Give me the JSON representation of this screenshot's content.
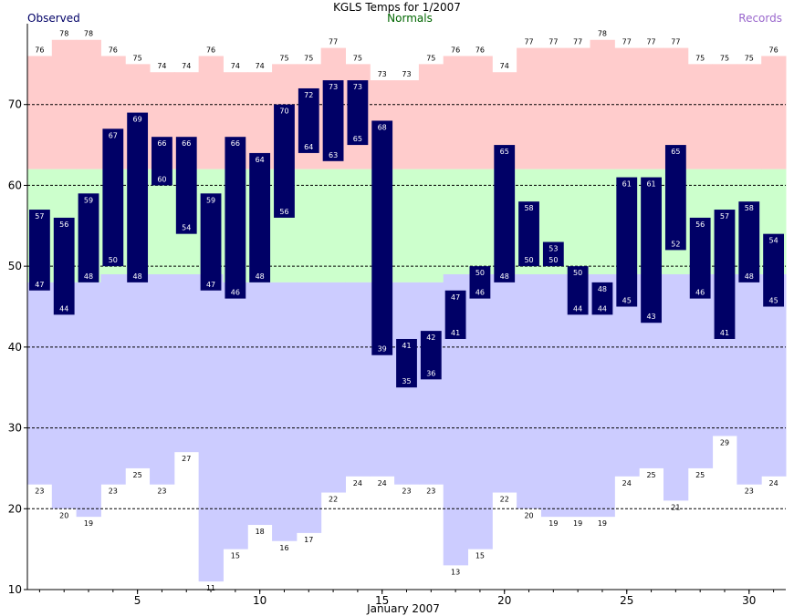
{
  "chart_data": {
    "type": "bar",
    "title": "KGLS Temps for 1/2007",
    "legend": {
      "observed": "Observed",
      "normals": "Normals",
      "records": "Records"
    },
    "xlabel": "January 2007",
    "ylabel": "",
    "x_ticks": [
      5,
      10,
      15,
      20,
      25,
      30
    ],
    "y_ticks": [
      10,
      20,
      30,
      40,
      50,
      60,
      70
    ],
    "ylim": [
      10,
      80
    ],
    "grid": true,
    "days": [
      1,
      2,
      3,
      4,
      5,
      6,
      7,
      8,
      9,
      10,
      11,
      12,
      13,
      14,
      15,
      16,
      17,
      18,
      19,
      20,
      21,
      22,
      23,
      24,
      25,
      26,
      27,
      28,
      29,
      30,
      31
    ],
    "observed_high": [
      57,
      56,
      59,
      67,
      69,
      66,
      66,
      59,
      66,
      64,
      70,
      72,
      73,
      73,
      68,
      41,
      42,
      47,
      50,
      65,
      58,
      53,
      50,
      48,
      61,
      61,
      65,
      56,
      57,
      58,
      54
    ],
    "observed_low": [
      47,
      44,
      48,
      50,
      48,
      60,
      54,
      47,
      46,
      48,
      56,
      64,
      63,
      65,
      39,
      35,
      36,
      41,
      46,
      48,
      50,
      50,
      44,
      44,
      45,
      43,
      52,
      46,
      41,
      48,
      45
    ],
    "normal_high": [
      62,
      62,
      62,
      62,
      62,
      62,
      62,
      62,
      62,
      62,
      62,
      62,
      62,
      62,
      62,
      62,
      62,
      62,
      62,
      62,
      62,
      62,
      62,
      62,
      62,
      62,
      62,
      62,
      62,
      62,
      62
    ],
    "normal_low": [
      48,
      48,
      48,
      49,
      49,
      49,
      49,
      49,
      48,
      48,
      48,
      48,
      48,
      48,
      48,
      48,
      48,
      49,
      49,
      49,
      49,
      49,
      49,
      49,
      49,
      49,
      49,
      49,
      49,
      49,
      49
    ],
    "record_high": [
      76,
      78,
      78,
      76,
      75,
      74,
      74,
      76,
      74,
      74,
      75,
      75,
      77,
      75,
      73,
      73,
      75,
      76,
      76,
      74,
      77,
      77,
      77,
      78,
      77,
      77,
      77,
      75,
      75,
      75,
      76
    ],
    "record_low": [
      23,
      20,
      19,
      23,
      25,
      23,
      27,
      11,
      15,
      18,
      16,
      17,
      22,
      24,
      24,
      23,
      23,
      13,
      15,
      22,
      20,
      19,
      19,
      19,
      24,
      25,
      21,
      25,
      29,
      23,
      24
    ],
    "colors": {
      "observed": "#000066",
      "observed_label": "#000066",
      "normals_label": "#006600",
      "records_label": "#9966cc",
      "normal_band": "#ccffcc",
      "record_high_band": "#ffcccc",
      "record_low_band": "#ccccff",
      "bar_text": "#ffffff",
      "record_text": "#000000"
    }
  }
}
